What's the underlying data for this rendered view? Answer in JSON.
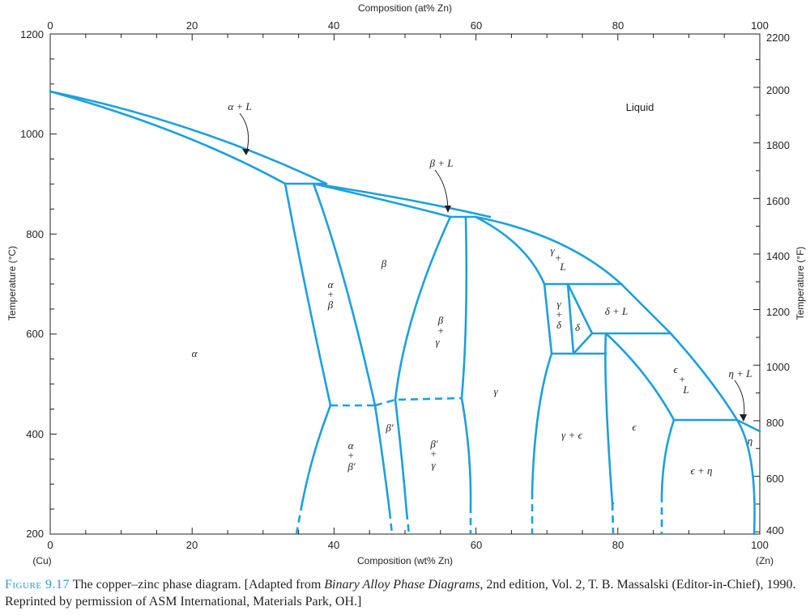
{
  "chart_data": {
    "type": "phase-diagram",
    "top_axis": {
      "label": "Composition (at% Zn)",
      "ticks": [
        "0",
        "20",
        "40",
        "60",
        "80",
        "100"
      ],
      "range": [
        0,
        100
      ]
    },
    "bottom_axis": {
      "label": "Composition (wt% Zn)",
      "ticks": [
        "0",
        "20",
        "40",
        "60",
        "80",
        "100"
      ],
      "range": [
        0,
        100
      ],
      "left_end": "(Cu)",
      "right_end": "(Zn)"
    },
    "left_axis": {
      "label": "Temperature (°C)",
      "ticks": [
        "200",
        "400",
        "600",
        "800",
        "1000",
        "1200"
      ],
      "range": [
        200,
        1200
      ]
    },
    "right_axis": {
      "label": "Temperature (°F)",
      "ticks": [
        "400",
        "600",
        "800",
        "1000",
        "1200",
        "1400",
        "1600",
        "1800",
        "2000",
        "2200"
      ]
    },
    "invariant_points_wt_C": [
      {
        "x": 0,
        "t": 1085
      },
      {
        "x": 32.5,
        "t": 903
      },
      {
        "x": 37.5,
        "t": 903
      },
      {
        "x": 39,
        "t": 903
      },
      {
        "x": 56.5,
        "t": 835
      },
      {
        "x": 59.8,
        "t": 835
      },
      {
        "x": 69.8,
        "t": 700
      },
      {
        "x": 73,
        "t": 700
      },
      {
        "x": 80.5,
        "t": 700
      },
      {
        "x": 76.5,
        "t": 600
      },
      {
        "x": 78.6,
        "t": 600
      },
      {
        "x": 88,
        "t": 598
      },
      {
        "x": 70.5,
        "t": 560
      },
      {
        "x": 78.6,
        "t": 560
      },
      {
        "x": 39,
        "t": 454
      },
      {
        "x": 45.5,
        "t": 454
      },
      {
        "x": 48.5,
        "t": 468
      },
      {
        "x": 58,
        "t": 468
      },
      {
        "x": 87.5,
        "t": 424
      },
      {
        "x": 97.5,
        "t": 424
      },
      {
        "x": 100,
        "t": 419
      }
    ]
  },
  "labels": {
    "alpha": "α",
    "alpha_L": "α + L",
    "beta": "β",
    "alpha_beta": [
      "α",
      "+",
      "β"
    ],
    "beta_L": "β + L",
    "liquid": "Liquid",
    "gamma_L": [
      "γ",
      "+",
      "L"
    ],
    "beta_gamma": [
      "β",
      "+",
      "γ"
    ],
    "gamma": "γ",
    "gamma_delta": [
      "γ",
      "+",
      "δ"
    ],
    "delta": "δ",
    "delta_L": "δ + L",
    "eps_L": [
      "ϵ",
      "+",
      "L"
    ],
    "eta_L": "η + L",
    "eta": "η",
    "eps": "ϵ",
    "gamma_eps": "γ + ϵ",
    "eps_eta": "ϵ + η",
    "beta_prime": "β′",
    "alpha_betaprime": [
      "α",
      "+",
      "β′"
    ],
    "betaprime_gamma": [
      "β′",
      "+",
      "γ"
    ]
  },
  "caption": {
    "figure": "Figure 9.17",
    "text_1": "The copper–zinc phase diagram. [Adapted from ",
    "book": "Binary Alloy Phase Diagrams,",
    "text_2": " 2nd edition, Vol. 2, T. B. Massalski (Editor-in-Chief), 1990. Reprinted by permission of ASM International, Materials Park, OH.]"
  },
  "colors": {
    "phase_boundary": "#1ca0dd",
    "axis": "#231f20",
    "figure_label": "#1ca0dd"
  }
}
